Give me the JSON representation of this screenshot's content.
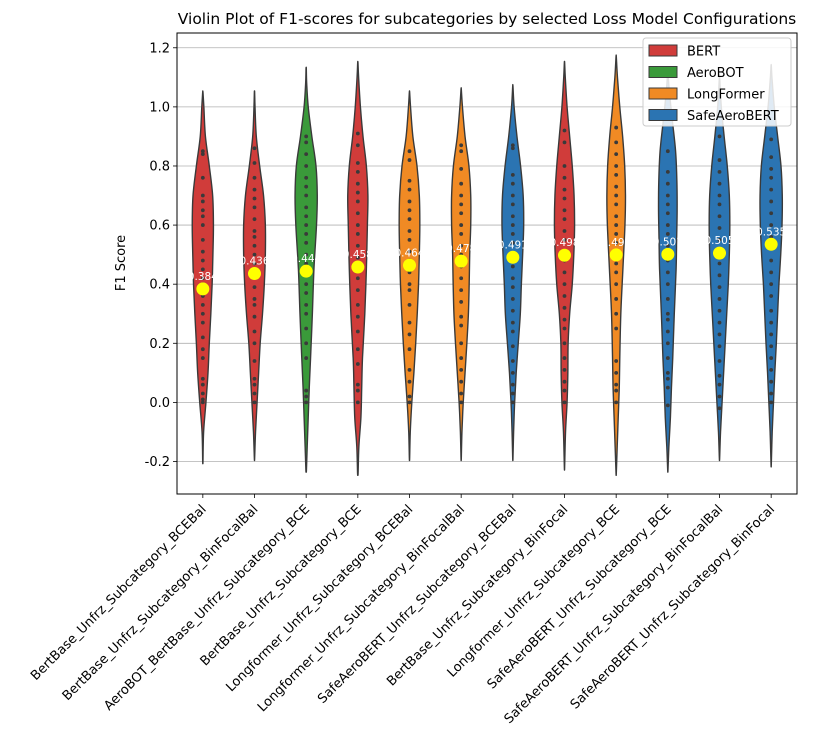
{
  "chart_data": {
    "type": "violin",
    "title": "Violin Plot of F1-scores for subcategories by selected Loss Model Configurations",
    "xlabel": "",
    "ylabel": "F1 Score",
    "ylim": [
      -0.31,
      1.25
    ],
    "yticks": [
      -0.2,
      0.0,
      0.2,
      0.4,
      0.6,
      0.8,
      1.0,
      1.2
    ],
    "grid": "horizontal",
    "legend_position": "top-right",
    "legend": [
      {
        "name": "BERT",
        "color": "#d03c3a"
      },
      {
        "name": "AeroBOT",
        "color": "#3a9a3a"
      },
      {
        "name": "LongFormer",
        "color": "#f08a24"
      },
      {
        "name": "SafeAeroBERT",
        "color": "#2b74b2"
      }
    ],
    "mean_marker_color": "#ffff00",
    "categories": [
      {
        "label": "BertBase_Unfrz_Subcategory_BCEBal",
        "group": "BERT",
        "mean": 0.384,
        "mean_label": "0.384",
        "min": -0.2,
        "max": 1.05,
        "shape": [
          [
            -0.2,
            0.005
          ],
          [
            -0.1,
            0.03
          ],
          [
            0.0,
            0.12
          ],
          [
            0.1,
            0.2
          ],
          [
            0.2,
            0.25
          ],
          [
            0.3,
            0.31
          ],
          [
            0.4,
            0.36
          ],
          [
            0.5,
            0.39
          ],
          [
            0.6,
            0.41
          ],
          [
            0.7,
            0.38
          ],
          [
            0.8,
            0.25
          ],
          [
            0.9,
            0.1
          ],
          [
            1.0,
            0.04
          ],
          [
            1.05,
            0.005
          ]
        ]
      },
      {
        "label": "BertBase_Unfrz_Subcategory_BinFocalBal",
        "group": "BERT",
        "mean": 0.436,
        "mean_label": "0.436",
        "min": -0.19,
        "max": 1.05,
        "shape": [
          [
            -0.19,
            0.005
          ],
          [
            -0.1,
            0.04
          ],
          [
            0.0,
            0.1
          ],
          [
            0.1,
            0.16
          ],
          [
            0.2,
            0.22
          ],
          [
            0.3,
            0.31
          ],
          [
            0.4,
            0.38
          ],
          [
            0.5,
            0.42
          ],
          [
            0.6,
            0.42
          ],
          [
            0.7,
            0.35
          ],
          [
            0.8,
            0.2
          ],
          [
            0.9,
            0.07
          ],
          [
            1.0,
            0.02
          ],
          [
            1.05,
            0.005
          ]
        ]
      },
      {
        "label": "AeroBOT_BertBase_Unfrz_Subcategory_BCE",
        "group": "AeroBOT",
        "mean": 0.444,
        "mean_label": "0.444",
        "min": -0.23,
        "max": 1.13,
        "shape": [
          [
            -0.23,
            0.01
          ],
          [
            -0.15,
            0.04
          ],
          [
            -0.05,
            0.08
          ],
          [
            0.05,
            0.12
          ],
          [
            0.15,
            0.17
          ],
          [
            0.3,
            0.24
          ],
          [
            0.45,
            0.3
          ],
          [
            0.6,
            0.4
          ],
          [
            0.7,
            0.43
          ],
          [
            0.8,
            0.38
          ],
          [
            0.9,
            0.22
          ],
          [
            1.0,
            0.08
          ],
          [
            1.08,
            0.02
          ],
          [
            1.13,
            0.005
          ]
        ]
      },
      {
        "label": "BertBase_Unfrz_Subcategory_BCE",
        "group": "BERT",
        "mean": 0.458,
        "mean_label": "0.458",
        "min": -0.24,
        "max": 1.15,
        "shape": [
          [
            -0.24,
            0.01
          ],
          [
            -0.15,
            0.04
          ],
          [
            -0.05,
            0.12
          ],
          [
            0.05,
            0.15
          ],
          [
            0.15,
            0.18
          ],
          [
            0.3,
            0.27
          ],
          [
            0.45,
            0.33
          ],
          [
            0.6,
            0.37
          ],
          [
            0.7,
            0.39
          ],
          [
            0.8,
            0.33
          ],
          [
            0.9,
            0.2
          ],
          [
            1.0,
            0.1
          ],
          [
            1.1,
            0.03
          ],
          [
            1.15,
            0.005
          ]
        ]
      },
      {
        "label": "Longformer_Unfrz_Subcategory_BCEBal",
        "group": "LongFormer",
        "mean": 0.464,
        "mean_label": "0.464",
        "min": -0.19,
        "max": 1.05,
        "shape": [
          [
            -0.19,
            0.005
          ],
          [
            -0.1,
            0.03
          ],
          [
            0.0,
            0.09
          ],
          [
            0.1,
            0.17
          ],
          [
            0.2,
            0.24
          ],
          [
            0.3,
            0.3
          ],
          [
            0.4,
            0.35
          ],
          [
            0.5,
            0.38
          ],
          [
            0.6,
            0.4
          ],
          [
            0.7,
            0.38
          ],
          [
            0.8,
            0.29
          ],
          [
            0.9,
            0.13
          ],
          [
            1.0,
            0.04
          ],
          [
            1.05,
            0.005
          ]
        ]
      },
      {
        "label": "Longformer_Unfrz_Subcategory_BinFocalBal",
        "group": "LongFormer",
        "mean": 0.478,
        "mean_label": "0.478",
        "min": -0.19,
        "max": 1.06,
        "shape": [
          [
            -0.19,
            0.005
          ],
          [
            -0.1,
            0.03
          ],
          [
            0.0,
            0.08
          ],
          [
            0.1,
            0.15
          ],
          [
            0.2,
            0.22
          ],
          [
            0.3,
            0.28
          ],
          [
            0.4,
            0.31
          ],
          [
            0.5,
            0.33
          ],
          [
            0.6,
            0.37
          ],
          [
            0.7,
            0.37
          ],
          [
            0.8,
            0.3
          ],
          [
            0.9,
            0.15
          ],
          [
            1.0,
            0.05
          ],
          [
            1.06,
            0.005
          ]
        ]
      },
      {
        "label": "SafeAeroBERT_Unfrz_Subcategory_BCEBal",
        "group": "SafeAeroBERT",
        "mean": 0.491,
        "mean_label": "0.491",
        "min": -0.19,
        "max": 1.07,
        "shape": [
          [
            -0.19,
            0.005
          ],
          [
            -0.1,
            0.03
          ],
          [
            0.0,
            0.07
          ],
          [
            0.1,
            0.13
          ],
          [
            0.2,
            0.21
          ],
          [
            0.3,
            0.29
          ],
          [
            0.4,
            0.33
          ],
          [
            0.5,
            0.38
          ],
          [
            0.6,
            0.42
          ],
          [
            0.7,
            0.4
          ],
          [
            0.8,
            0.3
          ],
          [
            0.9,
            0.16
          ],
          [
            1.0,
            0.05
          ],
          [
            1.07,
            0.005
          ]
        ]
      },
      {
        "label": "BertBase_Unfrz_Subcategory_BinFocal",
        "group": "BERT",
        "mean": 0.498,
        "mean_label": "0.498",
        "min": -0.22,
        "max": 1.15,
        "shape": [
          [
            -0.22,
            0.005
          ],
          [
            -0.1,
            0.04
          ],
          [
            0.0,
            0.1
          ],
          [
            0.1,
            0.13
          ],
          [
            0.2,
            0.14
          ],
          [
            0.3,
            0.2
          ],
          [
            0.4,
            0.3
          ],
          [
            0.5,
            0.36
          ],
          [
            0.6,
            0.39
          ],
          [
            0.7,
            0.37
          ],
          [
            0.8,
            0.3
          ],
          [
            0.9,
            0.2
          ],
          [
            1.0,
            0.1
          ],
          [
            1.1,
            0.03
          ],
          [
            1.15,
            0.005
          ]
        ]
      },
      {
        "label": "Longformer_Unfrz_Subcategory_BCE",
        "group": "LongFormer",
        "mean": 0.499,
        "mean_label": "0.499",
        "min": -0.24,
        "max": 1.17,
        "shape": [
          [
            -0.24,
            0.005
          ],
          [
            -0.15,
            0.04
          ],
          [
            -0.05,
            0.08
          ],
          [
            0.05,
            0.12
          ],
          [
            0.15,
            0.14
          ],
          [
            0.3,
            0.18
          ],
          [
            0.45,
            0.26
          ],
          [
            0.6,
            0.34
          ],
          [
            0.7,
            0.36
          ],
          [
            0.8,
            0.33
          ],
          [
            0.9,
            0.25
          ],
          [
            1.0,
            0.14
          ],
          [
            1.1,
            0.05
          ],
          [
            1.17,
            0.005
          ]
        ]
      },
      {
        "label": "SafeAeroBERT_Unfrz_Subcategory_BCE",
        "group": "SafeAeroBERT",
        "mean": 0.501,
        "mean_label": "0.501",
        "min": -0.23,
        "max": 1.12,
        "shape": [
          [
            -0.23,
            0.005
          ],
          [
            -0.15,
            0.04
          ],
          [
            -0.05,
            0.1
          ],
          [
            0.05,
            0.14
          ],
          [
            0.15,
            0.19
          ],
          [
            0.3,
            0.25
          ],
          [
            0.45,
            0.32
          ],
          [
            0.55,
            0.34
          ],
          [
            0.65,
            0.36
          ],
          [
            0.75,
            0.35
          ],
          [
            0.85,
            0.3
          ],
          [
            0.95,
            0.18
          ],
          [
            1.05,
            0.06
          ],
          [
            1.12,
            0.005
          ]
        ]
      },
      {
        "label": "SafeAeroBERT_Unfrz_Subcategory_BinFocalBal",
        "group": "SafeAeroBERT",
        "mean": 0.505,
        "mean_label": "0.505",
        "min": -0.19,
        "max": 1.1,
        "shape": [
          [
            -0.19,
            0.005
          ],
          [
            -0.1,
            0.04
          ],
          [
            0.0,
            0.1
          ],
          [
            0.1,
            0.16
          ],
          [
            0.2,
            0.22
          ],
          [
            0.3,
            0.28
          ],
          [
            0.4,
            0.34
          ],
          [
            0.5,
            0.38
          ],
          [
            0.6,
            0.4
          ],
          [
            0.7,
            0.38
          ],
          [
            0.8,
            0.3
          ],
          [
            0.9,
            0.18
          ],
          [
            1.0,
            0.07
          ],
          [
            1.1,
            0.005
          ]
        ]
      },
      {
        "label": "SafeAeroBERT_Unfrz_Subcategory_BinFocal",
        "group": "SafeAeroBERT",
        "mean": 0.535,
        "mean_label": "0.535",
        "min": -0.21,
        "max": 1.14,
        "shape": [
          [
            -0.21,
            0.005
          ],
          [
            -0.1,
            0.04
          ],
          [
            0.0,
            0.09
          ],
          [
            0.1,
            0.14
          ],
          [
            0.2,
            0.2
          ],
          [
            0.3,
            0.25
          ],
          [
            0.4,
            0.3
          ],
          [
            0.5,
            0.37
          ],
          [
            0.6,
            0.42
          ],
          [
            0.7,
            0.43
          ],
          [
            0.8,
            0.38
          ],
          [
            0.9,
            0.25
          ],
          [
            1.0,
            0.12
          ],
          [
            1.1,
            0.03
          ],
          [
            1.14,
            0.005
          ]
        ]
      }
    ],
    "points": [
      [
        0.0,
        0.01,
        0.03,
        0.06,
        0.08,
        0.15,
        0.18,
        0.22,
        0.27,
        0.3,
        0.33,
        0.36,
        0.4,
        0.42,
        0.45,
        0.48,
        0.51,
        0.55,
        0.6,
        0.63,
        0.65,
        0.68,
        0.7,
        0.76,
        0.84,
        0.85
      ],
      [
        0.0,
        0.03,
        0.06,
        0.08,
        0.14,
        0.2,
        0.24,
        0.29,
        0.33,
        0.35,
        0.39,
        0.43,
        0.47,
        0.5,
        0.53,
        0.56,
        0.58,
        0.62,
        0.66,
        0.69,
        0.72,
        0.76,
        0.81,
        0.86
      ],
      [
        0.0,
        0.02,
        0.04,
        0.15,
        0.2,
        0.25,
        0.3,
        0.33,
        0.37,
        0.4,
        0.44,
        0.47,
        0.5,
        0.54,
        0.57,
        0.6,
        0.63,
        0.66,
        0.7,
        0.73,
        0.76,
        0.8,
        0.84,
        0.88,
        0.9
      ],
      [
        0.0,
        0.04,
        0.06,
        0.13,
        0.18,
        0.24,
        0.29,
        0.33,
        0.38,
        0.42,
        0.45,
        0.49,
        0.53,
        0.57,
        0.6,
        0.64,
        0.68,
        0.71,
        0.74,
        0.78,
        0.81,
        0.87,
        0.91
      ],
      [
        0.0,
        0.02,
        0.07,
        0.11,
        0.18,
        0.23,
        0.27,
        0.33,
        0.38,
        0.4,
        0.44,
        0.48,
        0.51,
        0.55,
        0.58,
        0.62,
        0.65,
        0.68,
        0.72,
        0.75,
        0.82,
        0.85
      ],
      [
        0.0,
        0.03,
        0.07,
        0.11,
        0.15,
        0.2,
        0.26,
        0.29,
        0.34,
        0.38,
        0.42,
        0.46,
        0.5,
        0.53,
        0.57,
        0.6,
        0.64,
        0.67,
        0.7,
        0.74,
        0.79,
        0.85,
        0.87
      ],
      [
        0.0,
        0.03,
        0.06,
        0.1,
        0.14,
        0.19,
        0.24,
        0.27,
        0.31,
        0.35,
        0.39,
        0.42,
        0.46,
        0.5,
        0.54,
        0.57,
        0.6,
        0.63,
        0.67,
        0.7,
        0.74,
        0.77,
        0.86,
        0.87
      ],
      [
        0.0,
        0.04,
        0.07,
        0.11,
        0.15,
        0.2,
        0.25,
        0.28,
        0.32,
        0.36,
        0.4,
        0.44,
        0.48,
        0.51,
        0.55,
        0.58,
        0.62,
        0.65,
        0.69,
        0.72,
        0.76,
        0.8,
        0.88,
        0.92
      ],
      [
        0.0,
        0.04,
        0.06,
        0.1,
        0.14,
        0.25,
        0.3,
        0.35,
        0.4,
        0.44,
        0.47,
        0.5,
        0.54,
        0.57,
        0.6,
        0.63,
        0.67,
        0.7,
        0.73,
        0.77,
        0.8,
        0.84,
        0.88,
        0.93
      ],
      [
        -0.01,
        0.05,
        0.08,
        0.1,
        0.15,
        0.2,
        0.24,
        0.28,
        0.3,
        0.35,
        0.4,
        0.44,
        0.48,
        0.53,
        0.57,
        0.6,
        0.64,
        0.67,
        0.7,
        0.74,
        0.78,
        0.85
      ],
      [
        -0.02,
        0.02,
        0.06,
        0.09,
        0.14,
        0.19,
        0.23,
        0.27,
        0.31,
        0.35,
        0.39,
        0.43,
        0.47,
        0.51,
        0.55,
        0.59,
        0.63,
        0.67,
        0.7,
        0.74,
        0.78,
        0.82,
        0.9
      ],
      [
        0.0,
        0.03,
        0.07,
        0.11,
        0.15,
        0.19,
        0.23,
        0.27,
        0.31,
        0.36,
        0.4,
        0.44,
        0.48,
        0.52,
        0.56,
        0.6,
        0.64,
        0.68,
        0.72,
        0.76,
        0.79,
        0.83,
        0.89
      ]
    ]
  }
}
